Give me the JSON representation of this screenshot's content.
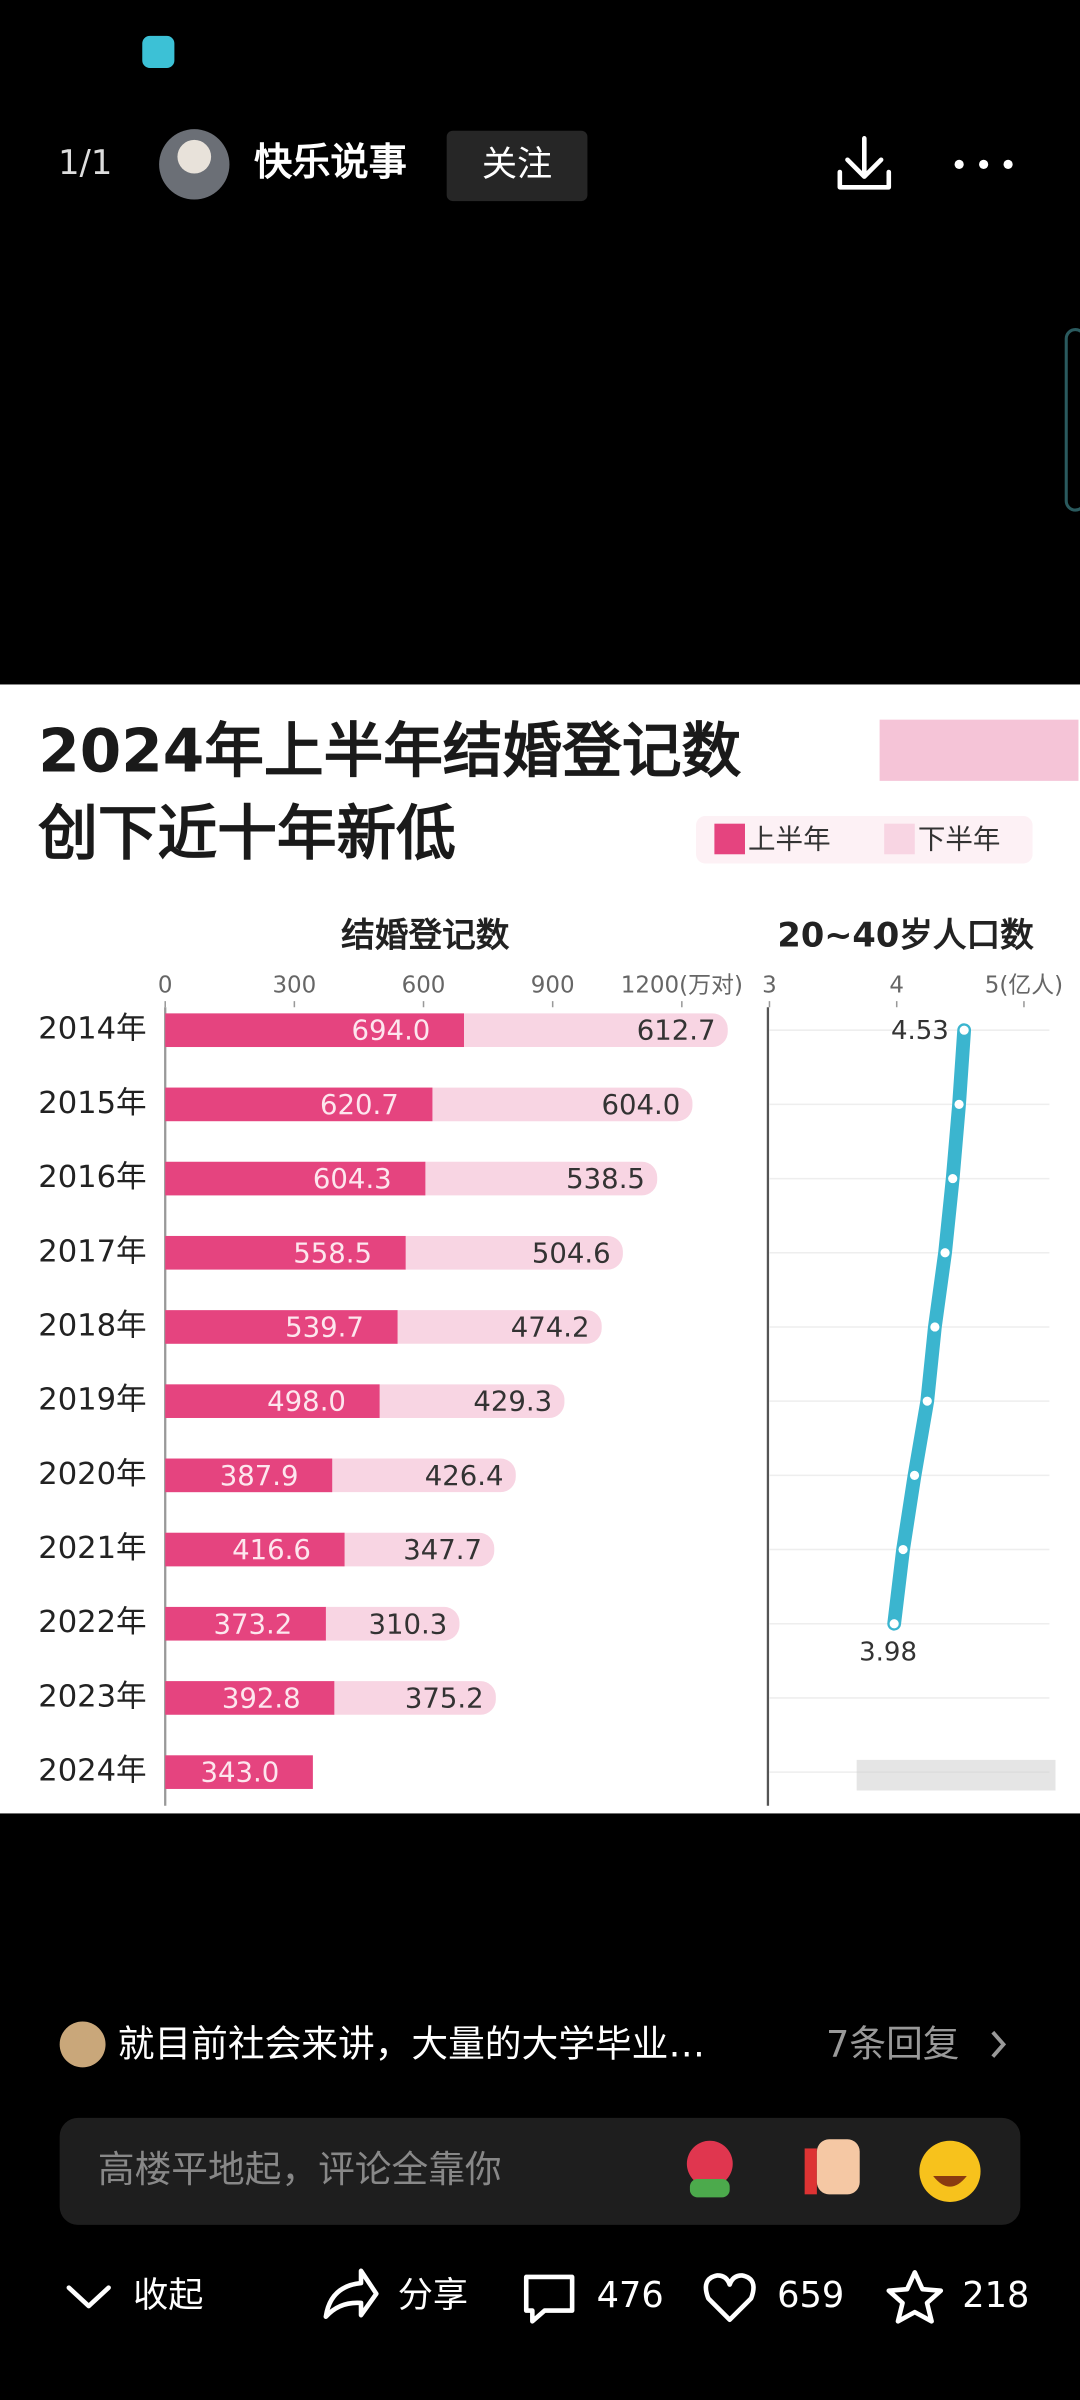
{
  "header": {
    "counter": "1/1",
    "username": "快乐说事",
    "follow": "关注"
  },
  "chart_data": {
    "type": "bar",
    "orientation": "horizontal",
    "stacked": true,
    "title": [
      "2024年上半年结婚登记数",
      "创下近十年新低"
    ],
    "xlabel": "结婚登记数",
    "categories": [
      "2014年",
      "2015年",
      "2016年",
      "2017年",
      "2018年",
      "2019年",
      "2020年",
      "2021年",
      "2022年",
      "2023年",
      "2024年"
    ],
    "series": [
      {
        "name": "上半年",
        "color": "#e5447f",
        "values": [
          694,
          620.7,
          604.3,
          558.5,
          539.7,
          498,
          387.9,
          416.6,
          373.2,
          392.8,
          343
        ],
        "value_labels": [
          "694.0",
          "620.7",
          "604.3",
          "558.5",
          "539.7",
          "498.0",
          "387.9",
          "416.6",
          "373.2",
          "392.8",
          "343.0"
        ]
      },
      {
        "name": "下半年",
        "color": "#f8d5e3",
        "values": [
          612.7,
          604,
          538.5,
          504.6,
          474.2,
          429.3,
          426.4,
          347.7,
          310.3,
          375.2,
          null
        ],
        "value_labels": [
          "612.7",
          "604.0",
          "538.5",
          "504.6",
          "474.2",
          "429.3",
          "426.4",
          "347.7",
          "310.3",
          "375.2",
          null
        ]
      },
      {
        "name": "20~40岁人口数",
        "type": "line",
        "axis": "x2",
        "color": "#3bb5cf",
        "values": [
          4.53,
          4.49,
          4.44,
          4.38,
          4.3,
          4.24,
          4.14,
          4.05,
          3.98,
          null,
          null
        ],
        "value_labels": [
          "4.53",
          null,
          null,
          null,
          null,
          null,
          null,
          null,
          "3.98",
          null,
          null
        ]
      }
    ],
    "xlim": [
      0,
      1400
    ],
    "xticks": [
      0,
      300,
      600,
      900,
      {
        "value": 1200,
        "label": "1200(万对)"
      }
    ],
    "x2lim": [
      3,
      5.2
    ],
    "x2ticks": [
      3,
      4,
      {
        "value": 5,
        "label": "5(亿人)"
      }
    ],
    "legend": "top-right"
  },
  "comment": {
    "text": "就目前社会来讲，大量的大学毕业…",
    "replies": "7条回复"
  },
  "input": {
    "placeholder": "高楼平地起，评论全靠你"
  },
  "toolbar": {
    "collapse": "收起",
    "share": "分享",
    "comments": 476,
    "likes": 659,
    "favorites": 218
  }
}
